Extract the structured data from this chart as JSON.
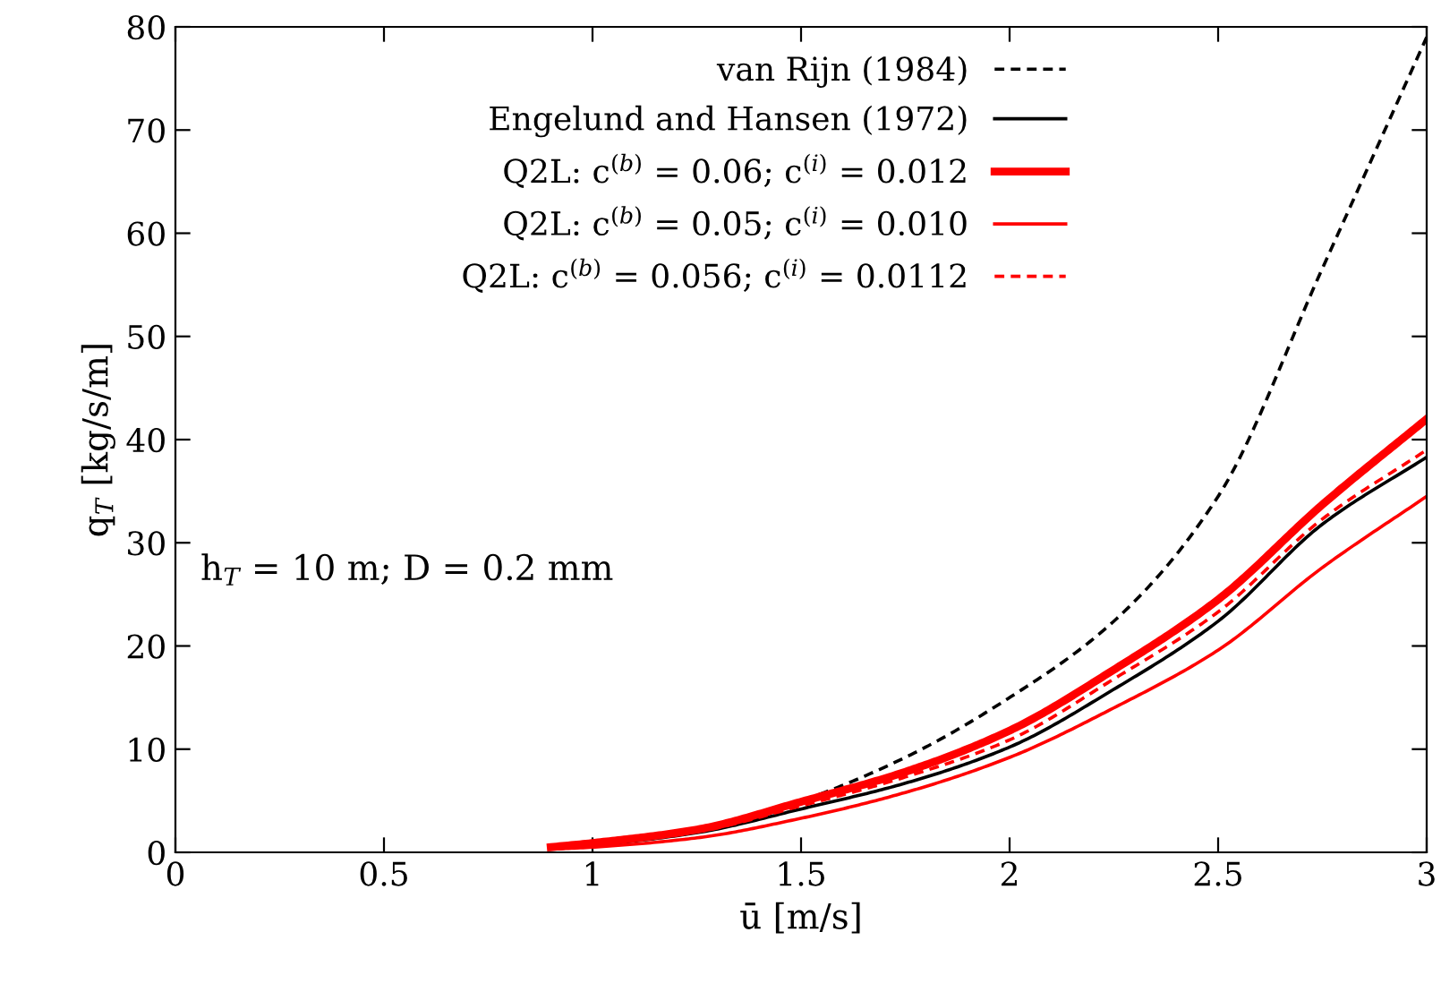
{
  "chart_data": {
    "type": "line",
    "xlabel": "ū [m/s]",
    "ylabel": "q$_{T}$ [kg/s/m]",
    "xlim": [
      0,
      3
    ],
    "xticks": [
      0,
      0.5,
      1,
      1.5,
      2,
      2.5,
      3
    ],
    "ylim": [
      0,
      80
    ],
    "yticks": [
      0,
      10,
      20,
      30,
      40,
      50,
      60,
      70,
      80
    ],
    "grid": false,
    "legend": "top",
    "marker": "none",
    "x": [
      0.9,
      1.0,
      1.25,
      1.5,
      1.75,
      2.0,
      2.25,
      2.5,
      2.75,
      3.0
    ],
    "series": [
      {
        "name": "van Rijn (1984)",
        "color": "#000000",
        "line_style": "dashed",
        "values": [
          0.4,
          0.7,
          2.2,
          5.0,
          9.2,
          15.0,
          22.4,
          34.5,
          56.6,
          79
        ]
      },
      {
        "name": "Engelund and Hansen (1972)",
        "color": "#000000",
        "line_style": "solid",
        "values": [
          0.4,
          0.7,
          1.9,
          4.2,
          6.7,
          10.2,
          15.8,
          22.4,
          31.8,
          38.3
        ]
      },
      {
        "name": "Q2L: c$^{(b)}$ = 0.06; c$^{(i)}$ = 0.012",
        "color": "#ff0000",
        "line_style": "solid",
        "values": [
          0.5,
          0.9,
          2.2,
          4.9,
          7.8,
          11.8,
          17.7,
          24.5,
          33.7,
          42
        ]
      },
      {
        "name": "Q2L: c$^{(b)}$ = 0.05; c$^{(i)}$ = 0.010",
        "color": "#ff0000",
        "line_style": "solid",
        "values": [
          0.3,
          0.5,
          1.4,
          3.3,
          5.8,
          9.2,
          14.0,
          19.6,
          27.6,
          34.5
        ]
      },
      {
        "name": "Q2L: c$^{(b)}$ = 0.056; c$^{(i)}$ = 0.0112",
        "color": "#ff0000",
        "line_style": "dashed",
        "values": [
          0.5,
          0.8,
          2.0,
          4.5,
          7.3,
          10.9,
          16.8,
          23.3,
          32.3,
          39
        ]
      }
    ],
    "annotations": [
      "h$_{T}$ = 10 m; D = 0.2 mm"
    ]
  }
}
